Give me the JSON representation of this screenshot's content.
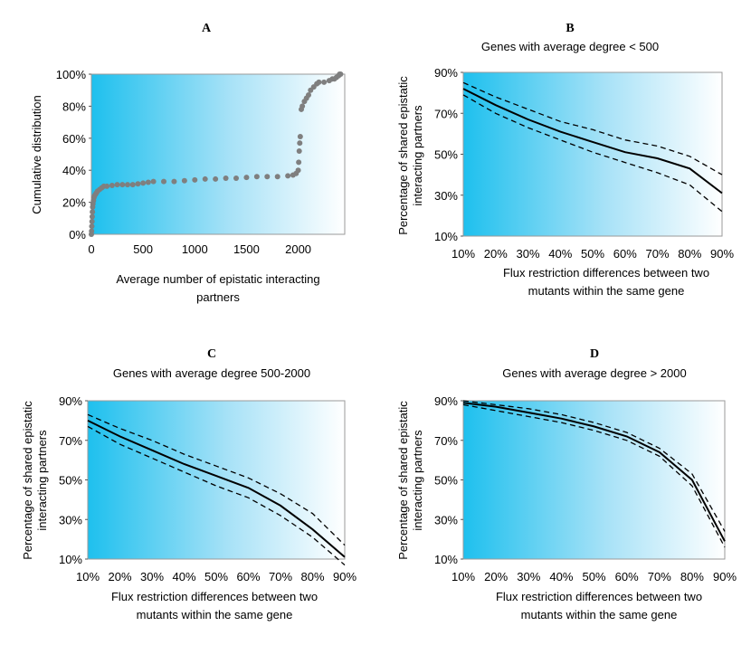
{
  "chart_data": [
    {
      "panel": "A",
      "type": "scatter",
      "title": "",
      "xlabel": "Average number of epistatic interacting partners",
      "ylabel": "Cumulative distribution",
      "xlim": [
        0,
        2450
      ],
      "ylim": [
        0,
        100
      ],
      "xticks": [
        "0",
        "500",
        "1000",
        "1500",
        "2000"
      ],
      "xtick_values": [
        0,
        500,
        1000,
        1500,
        2000
      ],
      "yticks": [
        "0%",
        "20%",
        "40%",
        "60%",
        "80%",
        "100%"
      ],
      "ytick_values": [
        0,
        20,
        40,
        60,
        80,
        100
      ],
      "background": "gradient cyan to white",
      "x": [
        0,
        2,
        4,
        6,
        8,
        10,
        12,
        15,
        20,
        25,
        30,
        40,
        50,
        60,
        80,
        100,
        120,
        150,
        200,
        250,
        300,
        350,
        400,
        450,
        500,
        550,
        600,
        700,
        800,
        900,
        1000,
        1100,
        1200,
        1300,
        1400,
        1500,
        1600,
        1700,
        1800,
        1900,
        1950,
        1980,
        2000,
        2005,
        2010,
        2015,
        2020,
        2030,
        2040,
        2060,
        2080,
        2100,
        2120,
        2150,
        2180,
        2200,
        2250,
        2300,
        2330,
        2350,
        2370,
        2390,
        2400,
        2410
      ],
      "y": [
        0,
        2,
        5,
        8,
        11,
        14,
        17,
        19,
        21,
        23,
        24,
        25,
        26,
        27,
        28,
        29,
        30,
        30,
        30.5,
        31,
        31,
        31,
        31,
        31.5,
        32,
        32.5,
        33,
        33,
        33,
        33.5,
        34,
        34.5,
        34.5,
        35,
        35,
        35.5,
        36,
        36,
        36,
        36.5,
        37,
        38,
        40,
        45,
        52,
        57,
        61,
        78,
        80,
        83,
        85,
        87,
        90,
        92,
        94,
        95,
        95,
        96,
        97,
        97,
        98,
        99,
        100,
        100
      ]
    },
    {
      "panel": "B",
      "type": "line",
      "title": "Genes with average degree < 500",
      "xlabel": "Flux restriction differences between two mutants within the same gene",
      "ylabel": "Percentage of shared epistatic interacting partners",
      "categories": [
        "10%",
        "20%",
        "30%",
        "40%",
        "50%",
        "60%",
        "70%",
        "80%",
        "90%"
      ],
      "ylim": [
        10,
        90
      ],
      "yticks": [
        "10%",
        "30%",
        "50%",
        "70%",
        "90%"
      ],
      "ytick_values": [
        10,
        30,
        50,
        70,
        90
      ],
      "series": [
        {
          "name": "upper",
          "style": "dashed",
          "values": [
            85,
            78,
            72,
            66,
            62,
            57,
            54,
            49,
            40
          ]
        },
        {
          "name": "mean",
          "style": "solid",
          "values": [
            82,
            74,
            67,
            61,
            56,
            51,
            48,
            43,
            31
          ]
        },
        {
          "name": "lower",
          "style": "dashed",
          "values": [
            79,
            70,
            63,
            57,
            51,
            46,
            41,
            35,
            22
          ]
        }
      ]
    },
    {
      "panel": "C",
      "type": "line",
      "title": "Genes with average degree 500-2000",
      "xlabel": "Flux restriction differences between two mutants within the same gene",
      "ylabel": "Percentage of shared epistatic interacting partners",
      "categories": [
        "10%",
        "20%",
        "30%",
        "40%",
        "50%",
        "60%",
        "70%",
        "80%",
        "90%"
      ],
      "ylim": [
        10,
        90
      ],
      "yticks": [
        "10%",
        "30%",
        "50%",
        "70%",
        "90%"
      ],
      "ytick_values": [
        10,
        30,
        50,
        70,
        90
      ],
      "series": [
        {
          "name": "upper",
          "style": "dashed",
          "values": [
            83,
            76,
            70,
            63,
            57,
            51,
            43,
            33,
            17
          ]
        },
        {
          "name": "mean",
          "style": "solid",
          "values": [
            80,
            72,
            65,
            58,
            52,
            46,
            37,
            25,
            11
          ]
        },
        {
          "name": "lower",
          "style": "dashed",
          "values": [
            77,
            68,
            61,
            54,
            47,
            41,
            32,
            21,
            7
          ]
        }
      ]
    },
    {
      "panel": "D",
      "type": "line",
      "title": "Genes with average degree > 2000",
      "xlabel": "Flux restriction differences between two mutants within the same gene",
      "ylabel": "Percentage of shared epistatic interacting partners",
      "categories": [
        "10%",
        "20%",
        "30%",
        "40%",
        "50%",
        "60%",
        "70%",
        "80%",
        "90%"
      ],
      "ylim": [
        10,
        90
      ],
      "yticks": [
        "10%",
        "30%",
        "50%",
        "70%",
        "90%"
      ],
      "ytick_values": [
        10,
        30,
        50,
        70,
        90
      ],
      "series": [
        {
          "name": "upper",
          "style": "dashed",
          "values": [
            90,
            88,
            86,
            83,
            79,
            74,
            66,
            53,
            24
          ]
        },
        {
          "name": "mean",
          "style": "solid",
          "values": [
            89,
            87,
            84,
            81,
            77,
            72,
            64,
            50,
            19
          ]
        },
        {
          "name": "lower",
          "style": "dashed",
          "values": [
            88,
            85,
            82,
            79,
            75,
            70,
            62,
            47,
            16
          ]
        }
      ]
    }
  ]
}
